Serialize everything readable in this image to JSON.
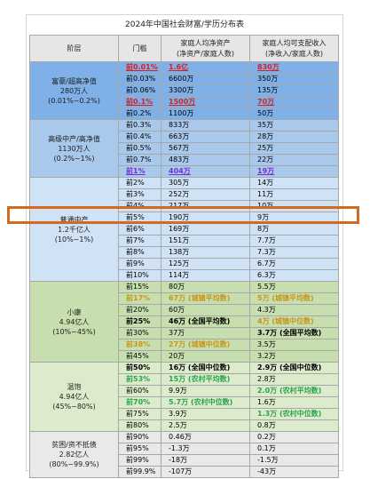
{
  "title": "2024年中国社会财富/学历分布表",
  "headers": {
    "tier": "阶层",
    "threshold": "门槛",
    "assets": "家庭人均净资产\n(净资产/家庭人数)",
    "income": "家庭人均可支配收入\n(净收入/家庭人数)"
  },
  "tiers": [
    {
      "label": "富豪/超高净值\n280万人\n(0.01%~0.2%)",
      "color": "#7fb0e8",
      "rows": [
        {
          "threshold": "前0.01%",
          "assets": "1.6亿",
          "income": "830万",
          "style": [
            "red",
            "red",
            "red"
          ]
        },
        {
          "threshold": "前0.03%",
          "assets": "6600万",
          "income": "350万",
          "style": [
            "",
            "",
            ""
          ]
        },
        {
          "threshold": "前0.06%",
          "assets": "3300万",
          "income": "135万",
          "style": [
            "",
            "",
            ""
          ]
        },
        {
          "threshold": "前0.1%",
          "assets": "1500万",
          "income": "70万",
          "style": [
            "red",
            "red",
            "red"
          ]
        },
        {
          "threshold": "前0.2%",
          "assets": "1100万",
          "income": "50万",
          "style": [
            "",
            "",
            ""
          ]
        }
      ]
    },
    {
      "label": "高级中产/高净值\n1130万人\n(0.2%~1%)",
      "color": "#a8c8ec",
      "rows": [
        {
          "threshold": "前0.3%",
          "assets": "833万",
          "income": "35万",
          "style": [
            "",
            "",
            ""
          ]
        },
        {
          "threshold": "前0.4%",
          "assets": "663万",
          "income": "28万",
          "style": [
            "",
            "",
            ""
          ]
        },
        {
          "threshold": "前0.5%",
          "assets": "567万",
          "income": "25万",
          "style": [
            "",
            "",
            ""
          ]
        },
        {
          "threshold": "前0.7%",
          "assets": "483万",
          "income": "22万",
          "style": [
            "",
            "",
            ""
          ]
        },
        {
          "threshold": "前1%",
          "assets": "404万",
          "income": "19万",
          "style": [
            "purple",
            "purple",
            "purple"
          ]
        }
      ]
    },
    {
      "label": "普通中产\n1.2千亿人\n(10%~1%)",
      "color": "#d0e2f5",
      "rows": [
        {
          "threshold": "前2%",
          "assets": "305万",
          "income": "14万",
          "style": [
            "",
            "",
            ""
          ]
        },
        {
          "threshold": "前3%",
          "assets": "252万",
          "income": "11万",
          "style": [
            "",
            "",
            ""
          ]
        },
        {
          "threshold": "前4%",
          "assets": "217万",
          "income": "10万",
          "style": [
            "",
            "",
            ""
          ]
        },
        {
          "threshold": "前5%",
          "assets": "190万",
          "income": "9万",
          "style": [
            "",
            "",
            ""
          ]
        },
        {
          "threshold": "前6%",
          "assets": "169万",
          "income": "8万",
          "style": [
            "",
            "",
            ""
          ]
        },
        {
          "threshold": "前7%",
          "assets": "151万",
          "income": "7.7万",
          "style": [
            "",
            "",
            ""
          ]
        },
        {
          "threshold": "前8%",
          "assets": "138万",
          "income": "7.3万",
          "style": [
            "",
            "",
            ""
          ]
        },
        {
          "threshold": "前9%",
          "assets": "125万",
          "income": "6.7万",
          "style": [
            "",
            "",
            ""
          ]
        },
        {
          "threshold": "前10%",
          "assets": "114万",
          "income": "6.3万",
          "style": [
            "",
            "",
            ""
          ]
        }
      ]
    },
    {
      "label": "小康\n4.94亿人\n(10%~45%)",
      "color": "#c7dfae",
      "rows": [
        {
          "threshold": "前15%",
          "assets": "80万",
          "income": "5.5万",
          "style": [
            "",
            "",
            ""
          ]
        },
        {
          "threshold": "前17%",
          "assets": "67万 (城镇平均数)",
          "income": "5万 (城镇平均数)",
          "style": [
            "gold",
            "gold",
            "gold"
          ]
        },
        {
          "threshold": "前20%",
          "assets": "60万",
          "income": "4.3万",
          "style": [
            "",
            "",
            ""
          ]
        },
        {
          "threshold": "前25%",
          "assets": "46万 (全国平均数)",
          "income": "4万 (城镇中位数)",
          "style": [
            "bold",
            "bold",
            "gold"
          ]
        },
        {
          "threshold": "前30%",
          "assets": "37万",
          "income": "3.7万 (全国平均数)",
          "style": [
            "",
            "",
            "bold"
          ]
        },
        {
          "threshold": "前38%",
          "assets": "27万 (城镇中位数)",
          "income": "3.5万",
          "style": [
            "gold",
            "gold",
            ""
          ]
        },
        {
          "threshold": "前45%",
          "assets": "20万",
          "income": "3.2万",
          "style": [
            "",
            "",
            ""
          ]
        }
      ]
    },
    {
      "label": "温饱\n4.94亿人\n(45%~80%)",
      "color": "#dcebcb",
      "rows": [
        {
          "threshold": "前50%",
          "assets": "16万 (全国中位数)",
          "income": "2.9万 (全国中位数)",
          "style": [
            "bold",
            "bold",
            "bold"
          ]
        },
        {
          "threshold": "前53%",
          "assets": "15万 (农村平均数)",
          "income": "2.8万",
          "style": [
            "green",
            "green",
            ""
          ]
        },
        {
          "threshold": "前60%",
          "assets": "9.9万",
          "income": "2.0万 (农村平均数)",
          "style": [
            "",
            "",
            "green"
          ]
        },
        {
          "threshold": "前70%",
          "assets": "5.7万 (农村中位数)",
          "income": "1.6万",
          "style": [
            "green",
            "green",
            ""
          ]
        },
        {
          "threshold": "前75%",
          "assets": "3.9万",
          "income": "1.3万 (农村中位数)",
          "style": [
            "",
            "",
            "green"
          ]
        },
        {
          "threshold": "前80%",
          "assets": "2.5万",
          "income": "0.8万",
          "style": [
            "",
            "",
            ""
          ]
        }
      ]
    },
    {
      "label": "贫困/资不抵债\n2.82亿人\n(80%~99.9%)",
      "color": "#e9e9e9",
      "rows": [
        {
          "threshold": "前90%",
          "assets": "0.46万",
          "income": "0.2万",
          "style": [
            "",
            "",
            ""
          ]
        },
        {
          "threshold": "前95%",
          "assets": "-1.3万",
          "income": "0.1万",
          "style": [
            "",
            "",
            ""
          ]
        },
        {
          "threshold": "前99%",
          "assets": "-18万",
          "income": "-1.5万",
          "style": [
            "",
            "",
            ""
          ]
        },
        {
          "threshold": "前99.9%",
          "assets": "-107万",
          "income": "-43万",
          "style": [
            "",
            "",
            ""
          ]
        }
      ]
    }
  ],
  "overlay_label": "普通中产"
}
